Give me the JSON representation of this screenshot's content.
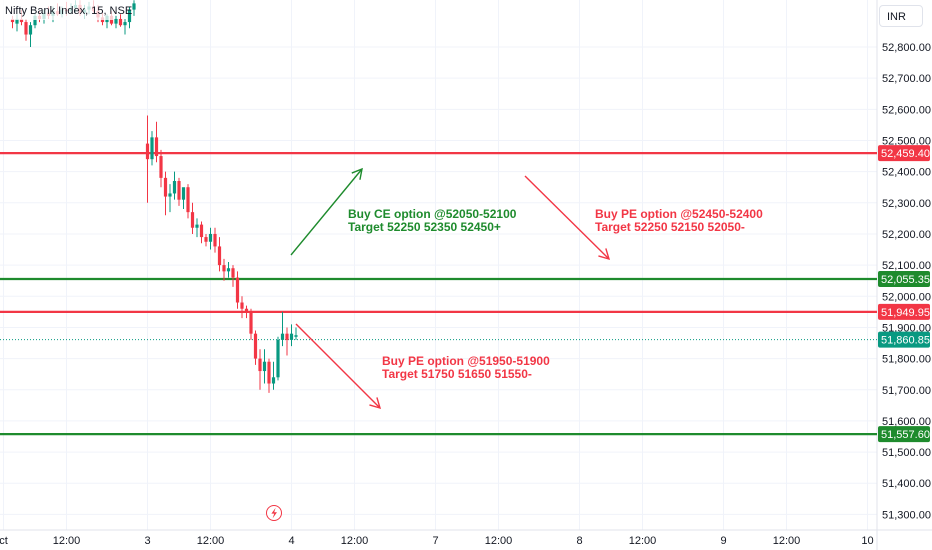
{
  "header": {
    "title": "Nifty Bank Index, 15, NSE",
    "currency": "INR"
  },
  "colors": {
    "bull": "#089981",
    "bear": "#f23645",
    "red_line": "#f23645",
    "green_line": "#1e8b2d",
    "current_price": "#089981",
    "axis_text": "#131722",
    "grid": "#f0f3fa"
  },
  "chart_data": {
    "type": "candlestick",
    "y_axis": {
      "range": [
        51250,
        52960
      ],
      "ticks": [
        "52,800.00",
        "52,700.00",
        "52,600.00",
        "52,500.00",
        "52,400.00",
        "52,300.00",
        "52,200.00",
        "52,100.00",
        "52,000.00",
        "51,900.00",
        "51,800.00",
        "51,700.00",
        "51,600.00",
        "51,500.00",
        "51,400.00",
        "51,300.00"
      ],
      "tick_values": [
        52800,
        52700,
        52600,
        52500,
        52400,
        52300,
        52200,
        52100,
        52000,
        51900,
        51800,
        51700,
        51600,
        51500,
        51400,
        51300
      ]
    },
    "x_axis": {
      "labels": [
        {
          "text": "ct",
          "bar": -1
        },
        {
          "text": "12:00",
          "bar": 13
        },
        {
          "text": "3",
          "bar": 31
        },
        {
          "text": "12:00",
          "bar": 45
        },
        {
          "text": "4",
          "bar": 63
        },
        {
          "text": "12:00",
          "bar": 77
        },
        {
          "text": "7",
          "bar": 95
        },
        {
          "text": "12:00",
          "bar": 109
        },
        {
          "text": "8",
          "bar": 127
        },
        {
          "text": "12:00",
          "bar": 141
        },
        {
          "text": "9",
          "bar": 159
        },
        {
          "text": "12:00",
          "bar": 173
        },
        {
          "text": "10",
          "bar": 191
        }
      ]
    },
    "candles_day1": [
      [
        1,
        52890,
        52900,
        52860,
        52880
      ],
      [
        2,
        52875,
        52905,
        52850,
        52890
      ],
      [
        3,
        52890,
        52920,
        52870,
        52880
      ],
      [
        4,
        52880,
        52890,
        52820,
        52840
      ],
      [
        5,
        52840,
        52880,
        52800,
        52870
      ],
      [
        6,
        52870,
        52910,
        52860,
        52900
      ],
      [
        7,
        52900,
        52915,
        52880,
        52890
      ],
      [
        8,
        52890,
        52920,
        52875,
        52910
      ],
      [
        9,
        52910,
        52930,
        52890,
        52900
      ],
      [
        10,
        52900,
        52930,
        52880,
        52915
      ],
      [
        11,
        52915,
        52940,
        52900,
        52905
      ],
      [
        12,
        52905,
        52930,
        52895,
        52920
      ],
      [
        13,
        52920,
        52945,
        52900,
        52915
      ],
      [
        14,
        52915,
        52940,
        52905,
        52925
      ],
      [
        15,
        52925,
        52950,
        52910,
        52935
      ],
      [
        16,
        52935,
        52950,
        52900,
        52910
      ],
      [
        17,
        52910,
        52935,
        52890,
        52920
      ],
      [
        18,
        52920,
        52945,
        52905,
        52930
      ],
      [
        19,
        52930,
        52950,
        52910,
        52915
      ],
      [
        20,
        52915,
        52935,
        52880,
        52895
      ],
      [
        21,
        52895,
        52910,
        52870,
        52880
      ],
      [
        22,
        52880,
        52905,
        52860,
        52900
      ],
      [
        23,
        52900,
        52915,
        52870,
        52875
      ],
      [
        24,
        52875,
        52900,
        52860,
        52890
      ],
      [
        25,
        52890,
        52905,
        52865,
        52870
      ],
      [
        26,
        52870,
        52890,
        52840,
        52880
      ],
      [
        27,
        52880,
        52930,
        52860,
        52920
      ],
      [
        28,
        52920,
        52950,
        52900,
        52940
      ]
    ],
    "candles_day2": [
      [
        31,
        52490,
        52580,
        52300,
        52440
      ],
      [
        32,
        52440,
        52530,
        52420,
        52510
      ],
      [
        33,
        52510,
        52560,
        52430,
        52450
      ],
      [
        34,
        52450,
        52470,
        52350,
        52380
      ],
      [
        35,
        52380,
        52400,
        52260,
        52320
      ],
      [
        36,
        52320,
        52360,
        52270,
        52330
      ],
      [
        37,
        52330,
        52400,
        52310,
        52370
      ],
      [
        38,
        52370,
        52380,
        52290,
        52310
      ],
      [
        39,
        52310,
        52340,
        52280,
        52350
      ],
      [
        40,
        52350,
        52360,
        52250,
        52270
      ],
      [
        41,
        52270,
        52300,
        52200,
        52220
      ],
      [
        42,
        52220,
        52250,
        52190,
        52230
      ],
      [
        43,
        52230,
        52240,
        52170,
        52190
      ],
      [
        44,
        52190,
        52200,
        52160,
        52175
      ],
      [
        45,
        52175,
        52220,
        52150,
        52200
      ],
      [
        46,
        52200,
        52220,
        52140,
        52160
      ],
      [
        47,
        52160,
        52190,
        52080,
        52100
      ],
      [
        48,
        52100,
        52120,
        52050,
        52080
      ],
      [
        49,
        52080,
        52110,
        52060,
        52090
      ],
      [
        50,
        52090,
        52100,
        52030,
        52060
      ],
      [
        51,
        52060,
        52080,
        51960,
        51980
      ],
      [
        52,
        51980,
        52000,
        51930,
        51960
      ],
      [
        53,
        51960,
        51970,
        51930,
        51950
      ],
      [
        54,
        51950,
        51960,
        51860,
        51880
      ],
      [
        55,
        51880,
        51890,
        51780,
        51800
      ],
      [
        56,
        51800,
        51830,
        51700,
        51760
      ],
      [
        57,
        51760,
        51830,
        51720,
        51790
      ],
      [
        58,
        51790,
        51800,
        51690,
        51720
      ],
      [
        59,
        51720,
        51790,
        51700,
        51740
      ],
      [
        60,
        51740,
        51870,
        51730,
        51860
      ],
      [
        61,
        51860,
        51950,
        51840,
        51880
      ],
      [
        62,
        51880,
        51900,
        51810,
        51860
      ],
      [
        63,
        51860,
        51910,
        51840,
        51880
      ],
      [
        64,
        51870,
        51900,
        51860,
        51875
      ]
    ],
    "levels": [
      {
        "value": 52459.4,
        "label": "52,459.40",
        "color": "#f23645"
      },
      {
        "value": 52055.35,
        "label": "52,055.35",
        "color": "#1e8b2d"
      },
      {
        "value": 51949.95,
        "label": "51,949.95",
        "color": "#f23645"
      },
      {
        "value": 51557.6,
        "label": "51,557.60",
        "color": "#1e8b2d"
      }
    ],
    "current_price": {
      "value": 51860.85,
      "label": "51,860.85"
    },
    "annotations": [
      {
        "line1": "Buy CE option @52050-52100",
        "line2": "Target 52250 52350 52450+",
        "color": "#1e8b2d"
      },
      {
        "line1": "Buy PE option @52450-52400",
        "line2": "Target 52250 52150 52050-",
        "color": "#f23645"
      },
      {
        "line1": "Buy PE option @51950-51900",
        "line2": "Target 51750 51650 51550-",
        "color": "#f23645"
      }
    ]
  }
}
